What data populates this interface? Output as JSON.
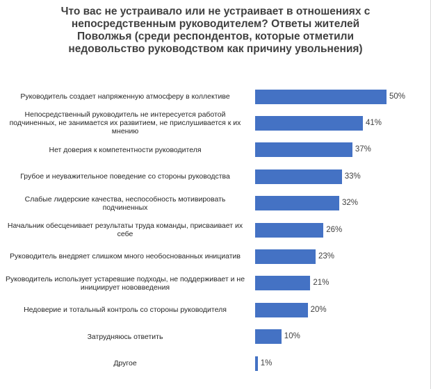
{
  "chart_data": {
    "type": "bar",
    "orientation": "horizontal",
    "title": "Что вас не устраивало или не устраивает в отношениях с непосредственным руководителем? Ответы жителей Поволжья (среди респондентов, которые отметили недовольство руководством как причину увольнения)",
    "categories": [
      "Руководитель создает напряженную атмосферу в коллективе",
      "Непосредственный руководитель не интересуется работой подчиненных, не занимается их развитием, не прислушивается к их мнению",
      "Нет доверия к компетентности руководителя",
      "Грубое и неуважительное поведение со стороны руководства",
      "Слабые лидерские качества, неспособность мотивировать подчиненных",
      "Начальник обесценивает результаты труда команды, присваивает их себе",
      "Руководитель внедряет слишком много необоснованных инициатив",
      "Руководитель использует устаревшие подходы, не поддерживает и не инициирует нововведения",
      "Недоверие и тотальный контроль со стороны руководителя",
      "Затрудняюсь ответить",
      "Другое"
    ],
    "values": [
      50,
      41,
      37,
      33,
      32,
      26,
      23,
      21,
      20,
      10,
      1
    ],
    "value_labels": [
      "50%",
      "41%",
      "37%",
      "33%",
      "32%",
      "26%",
      "23%",
      "21%",
      "20%",
      "10%",
      "1%"
    ],
    "color": "#4472c4"
  }
}
